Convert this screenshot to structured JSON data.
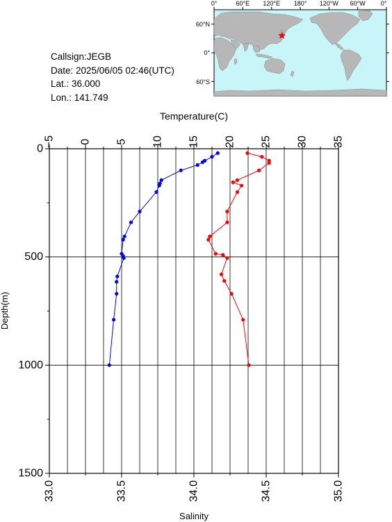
{
  "station": {
    "callsign": "Callsign:JEGB",
    "date": "Date:  2025/06/05 02:46(UTC)",
    "lat": "Lat.:   36.000",
    "lon": "Lon.:  141.749"
  },
  "map": {
    "top_labels": [
      "0°",
      "60°E",
      "120°E",
      "180°",
      "120°W",
      "60°W",
      "0°"
    ],
    "side_labels": [
      "60°N",
      "0°",
      "60°S"
    ],
    "colors": {
      "ocean": "#c8f5f8",
      "land": "#b7b7b7"
    },
    "station_marker": {
      "lon": 141.749,
      "lat": 36.0,
      "icon": "red-star-icon",
      "color": "#ff0000"
    }
  },
  "chart_data": {
    "type": "line",
    "ylabel": "Depth(m)",
    "ylim": [
      0,
      1500
    ],
    "yticks": [
      0,
      500,
      1000,
      1500
    ],
    "y_reversed": true,
    "temperature_axis": {
      "label": "Temperature(C)",
      "range": [
        -5,
        35
      ],
      "ticks": [
        "−5",
        "0",
        "5",
        "10",
        "15",
        "20",
        "25",
        "30",
        "35"
      ],
      "position": "top"
    },
    "salinity_axis": {
      "label": "Salinity",
      "range": [
        33.0,
        35.0
      ],
      "ticks": [
        "33.0",
        "33.5",
        "34.0",
        "34.5",
        "35.0"
      ],
      "position": "bottom"
    },
    "grid": true,
    "series": [
      {
        "color": "#0000ff",
        "axis": "temperature",
        "depth": [
          20,
          37,
          55,
          62,
          75,
          100,
          145,
          160,
          170,
          200,
          290,
          340,
          405,
          420,
          485,
          495,
          505,
          590,
          615,
          670,
          790,
          1000
        ],
        "values": [
          18.3,
          17.5,
          16.5,
          16.2,
          15.5,
          13.2,
          10.5,
          10.3,
          10.2,
          9.8,
          7.5,
          6.3,
          5.4,
          5.2,
          5.0,
          5.2,
          5.3,
          4.4,
          4.3,
          4.3,
          3.9,
          3.3
        ]
      },
      {
        "color": "#ff0000",
        "axis": "salinity",
        "depth": [
          20,
          37,
          55,
          65,
          100,
          145,
          155,
          170,
          200,
          290,
          340,
          405,
          420,
          485,
          490,
          505,
          580,
          610,
          670,
          790,
          1000
        ],
        "values": [
          34.37,
          34.47,
          34.52,
          34.52,
          34.45,
          34.3,
          34.27,
          34.33,
          34.3,
          34.23,
          34.23,
          34.11,
          34.1,
          34.15,
          34.2,
          34.23,
          34.19,
          34.21,
          34.26,
          34.34,
          34.38
        ]
      }
    ]
  }
}
